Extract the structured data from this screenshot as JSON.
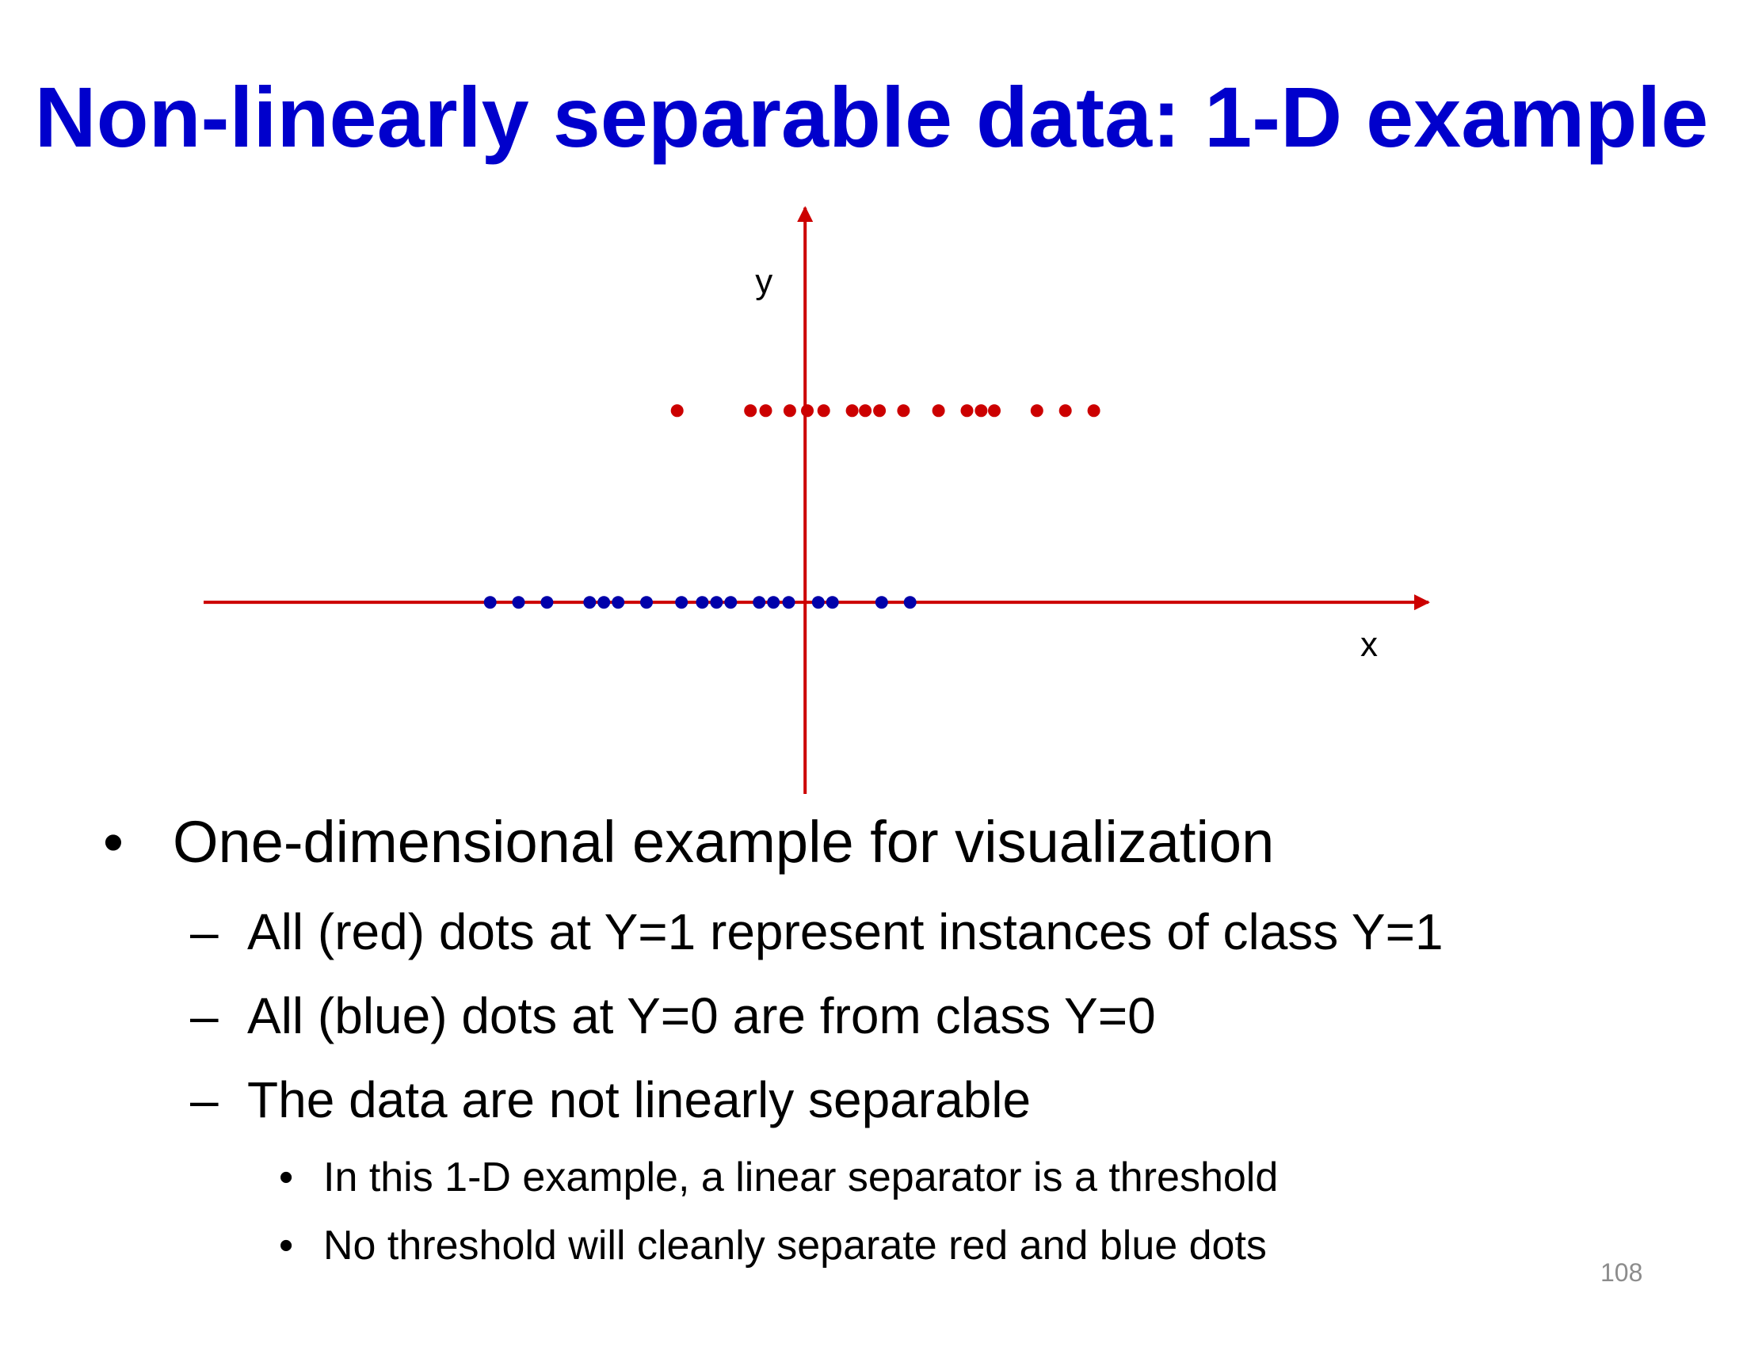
{
  "slide": {
    "title": "Non-linearly separable data: 1-D example",
    "page_number": "108"
  },
  "bullets": {
    "level1": {
      "marker": "•",
      "text": "One-dimensional example for visualization"
    },
    "level2": [
      {
        "marker": "–",
        "text": "All (red) dots at Y=1 represent instances of class Y=1"
      },
      {
        "marker": "–",
        "text": "All (blue) dots at Y=0 are from class Y=0"
      },
      {
        "marker": "–",
        "text": "The data are not linearly separable"
      }
    ],
    "level3": [
      {
        "marker": "•",
        "text": "In this 1-D example, a linear separator is a threshold"
      },
      {
        "marker": "•",
        "text": "No threshold will cleanly separate red and blue dots"
      }
    ]
  },
  "chart_data": {
    "type": "scatter",
    "title": "",
    "xlabel": "x",
    "ylabel": "y",
    "xlim": [
      -5.5,
      5.7
    ],
    "ylim": [
      -1.0,
      2.06
    ],
    "grid": false,
    "axis_color": "#cc0000",
    "series": [
      {
        "color": "#cc0000",
        "y_value": 1,
        "x": [
          -1.17,
          -0.5,
          -0.36,
          -0.14,
          0.02,
          0.17,
          0.43,
          0.55,
          0.68,
          0.9,
          1.22,
          1.48,
          1.61,
          1.73,
          2.12,
          2.38,
          2.64
        ]
      },
      {
        "color": "#0000aa",
        "y_value": 0,
        "x": [
          -2.88,
          -2.62,
          -2.36,
          -1.97,
          -1.84,
          -1.71,
          -1.45,
          -1.13,
          -0.94,
          -0.81,
          -0.68,
          -0.42,
          -0.29,
          -0.15,
          0.12,
          0.25,
          0.7,
          0.96
        ]
      }
    ]
  }
}
